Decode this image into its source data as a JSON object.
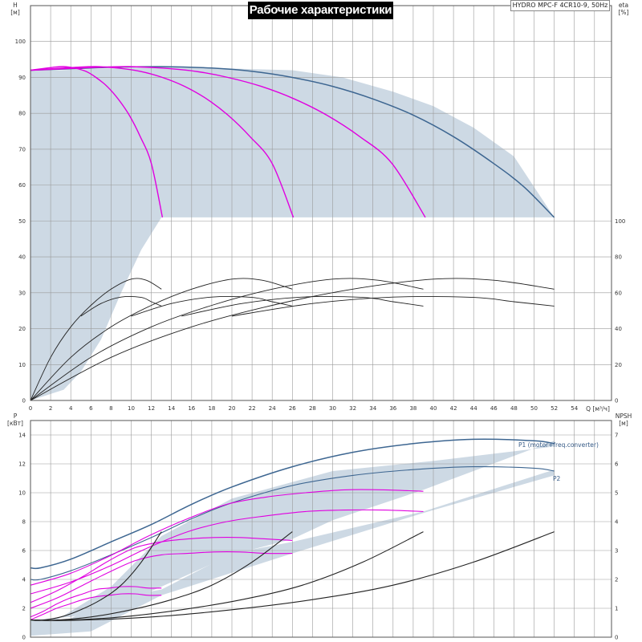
{
  "title": "Рабочие характеристики",
  "model": "HYDRO MPC-F 4CR10-9, 50Hz",
  "colors": {
    "region_fill": "#cdd9e4",
    "qh_full": "#3d6691",
    "qh_partial": "#e000e0",
    "eta": "#222222",
    "p_full": "#3d6691",
    "p_partial": "#e000e0",
    "npsh": "#222222",
    "grid": "#9a9a9a"
  },
  "chart_data": [
    {
      "id": "qh",
      "type": "line",
      "xlabel": "Q [м³/ч]",
      "ylabel_top": "H",
      "ylabel_unit": "[м]",
      "y2label_top": "eta",
      "y2label_unit": "[%]",
      "xlim": [
        0,
        56
      ],
      "ylim": [
        0,
        110
      ],
      "y2lim": [
        0,
        110
      ],
      "x_ticks": [
        0,
        2,
        4,
        6,
        8,
        10,
        12,
        14,
        16,
        18,
        20,
        22,
        24,
        26,
        28,
        30,
        32,
        34,
        36,
        38,
        40,
        42,
        44,
        46,
        48,
        50,
        52,
        54
      ],
      "y_ticks": [
        0,
        10,
        20,
        30,
        40,
        50,
        60,
        70,
        80,
        90,
        100
      ],
      "y2_ticks": [
        0,
        20,
        40,
        60,
        80,
        100
      ],
      "y2_tick_values_mapped": [
        0,
        10,
        20,
        30,
        40,
        50
      ],
      "grid": true,
      "operating_region": [
        [
          0,
          92
        ],
        [
          3,
          92
        ],
        [
          13,
          93
        ],
        [
          26,
          92
        ],
        [
          31,
          90
        ],
        [
          36,
          86
        ],
        [
          40,
          82
        ],
        [
          44,
          76
        ],
        [
          48,
          68
        ],
        [
          52,
          51
        ],
        [
          13,
          51
        ],
        [
          11,
          42
        ],
        [
          9,
          30
        ],
        [
          7,
          17
        ],
        [
          5,
          8
        ],
        [
          3.3,
          3
        ],
        [
          0,
          0
        ]
      ],
      "series": [
        {
          "group": "qh_full",
          "x": [
            0,
            4,
            8,
            13,
            18,
            22,
            26,
            30,
            34,
            38,
            42,
            46,
            49,
            52
          ],
          "y": [
            92,
            92.4,
            92.8,
            93,
            92.6,
            91.7,
            90,
            87.5,
            84,
            79.5,
            73.5,
            66,
            59.5,
            51
          ]
        },
        {
          "group": "qh_partial",
          "x": [
            0,
            3.3,
            6.5,
            9.8,
            13.1,
            16.4,
            19.6,
            22.9,
            26.2,
            29.4,
            32.7,
            35.9,
            39.2
          ],
          "y": [
            92,
            92.4,
            92.8,
            93,
            92.6,
            91.7,
            90,
            87.5,
            84,
            79.5,
            73.5,
            66,
            51
          ]
        },
        {
          "group": "qh_partial",
          "x": [
            0,
            2.2,
            4.4,
            6.5,
            8.7,
            10.9,
            13.1,
            15.3,
            17.5,
            19.6,
            21.8,
            24,
            26.1
          ],
          "y": [
            92,
            92.4,
            92.8,
            93,
            92.6,
            91.7,
            90,
            87.5,
            84,
            79.5,
            73.5,
            66,
            51
          ]
        },
        {
          "group": "qh_partial",
          "x": [
            0,
            1.1,
            2.2,
            3.3,
            4.4,
            5.5,
            6.5,
            7.6,
            8.7,
            9.8,
            10.9,
            12,
            13.1
          ],
          "y": [
            92,
            92.4,
            92.8,
            93,
            92.6,
            91.7,
            90,
            87.5,
            84,
            79.5,
            73.5,
            66,
            51
          ]
        },
        {
          "group": "eta",
          "x": [
            0,
            2,
            4,
            6,
            8,
            10,
            11.5,
            13
          ],
          "y": [
            0,
            12,
            20.5,
            26.5,
            31,
            33.8,
            33.5,
            31
          ]
        },
        {
          "group": "eta",
          "x": [
            0,
            4,
            8,
            12,
            16,
            20,
            23,
            26
          ],
          "y": [
            0,
            12,
            20.5,
            26.5,
            31,
            33.8,
            33.5,
            31
          ]
        },
        {
          "group": "eta",
          "x": [
            0,
            6,
            12,
            18,
            24,
            30,
            34.5,
            39
          ],
          "y": [
            0,
            12,
            20.5,
            26.5,
            31,
            33.8,
            33.5,
            31
          ]
        },
        {
          "group": "eta",
          "x": [
            0,
            8,
            16,
            24,
            32,
            40,
            46,
            52
          ],
          "y": [
            0,
            12,
            20.5,
            26.5,
            31,
            33.8,
            33.5,
            31
          ]
        },
        {
          "group": "eta",
          "x": [
            5,
            7,
            9,
            11,
            12,
            13
          ],
          "y": [
            23.5,
            27,
            28.8,
            28.7,
            27.5,
            26.3
          ]
        },
        {
          "group": "eta",
          "x": [
            10,
            14,
            18,
            22,
            24,
            26
          ],
          "y": [
            23.5,
            27,
            28.8,
            28.7,
            27.5,
            26.3
          ]
        },
        {
          "group": "eta",
          "x": [
            15,
            21,
            27,
            33,
            36,
            39
          ],
          "y": [
            23.5,
            27,
            28.8,
            28.7,
            27.5,
            26.3
          ]
        },
        {
          "group": "eta",
          "x": [
            20,
            28,
            36,
            44,
            48,
            52
          ],
          "y": [
            23.5,
            27,
            28.8,
            28.7,
            27.5,
            26.3
          ]
        }
      ]
    },
    {
      "id": "power",
      "type": "line",
      "ylabel_top": "P",
      "ylabel_unit": "[кВт]",
      "y2label_top": "NPSH",
      "y2label_unit": "[м]",
      "xlim": [
        0,
        56
      ],
      "ylim": [
        0,
        15
      ],
      "y2lim": [
        0,
        7.5
      ],
      "y_ticks": [
        0,
        2,
        4,
        6,
        8,
        10,
        12,
        14
      ],
      "y2_ticks": [
        0,
        1,
        2,
        3,
        4,
        5,
        6,
        7
      ],
      "grid": true,
      "p1_label": "P1 (motor+freq.converter)",
      "p2_label": "P2",
      "operating_regions": [
        [
          [
            0,
            1.2
          ],
          [
            4,
            1.4
          ],
          [
            8,
            2.0
          ],
          [
            12,
            3.2
          ],
          [
            13,
            3.5
          ],
          [
            20,
            5.7
          ],
          [
            26,
            6.8
          ],
          [
            30,
            8.1
          ],
          [
            39,
            10.2
          ],
          [
            52,
            13.6
          ],
          [
            52,
            13.2
          ],
          [
            40,
            12.2
          ],
          [
            30,
            11.5
          ],
          [
            20,
            9.6
          ],
          [
            13,
            7.0
          ],
          [
            8,
            3.5
          ],
          [
            4,
            1.8
          ],
          [
            2,
            0.9
          ],
          [
            0,
            0.3
          ]
        ],
        [
          [
            0,
            1.0
          ],
          [
            4,
            1.3
          ],
          [
            8,
            2.7
          ],
          [
            13,
            3.3
          ],
          [
            20,
            5.8
          ],
          [
            26,
            6.6
          ],
          [
            39,
            8.7
          ],
          [
            52,
            11.6
          ],
          [
            52,
            11.2
          ],
          [
            39,
            8.6
          ],
          [
            26,
            5.8
          ],
          [
            13,
            2.9
          ],
          [
            6,
            0.4
          ],
          [
            0,
            0.1
          ]
        ]
      ],
      "series": [
        {
          "group": "p_full",
          "label": "P1",
          "x": [
            0,
            1,
            4,
            8,
            12,
            16,
            20,
            26,
            32,
            38,
            44,
            50,
            52
          ],
          "y": [
            4.8,
            4.8,
            5.4,
            6.6,
            7.8,
            9.2,
            10.4,
            11.8,
            12.8,
            13.4,
            13.7,
            13.6,
            13.4
          ]
        },
        {
          "group": "p_full",
          "label": "P2",
          "x": [
            0,
            1,
            4,
            8,
            12,
            16,
            20,
            26,
            32,
            38,
            44,
            50,
            52
          ],
          "y": [
            4.0,
            4.0,
            4.6,
            5.7,
            6.9,
            8.2,
            9.3,
            10.5,
            11.2,
            11.6,
            11.8,
            11.7,
            11.5
          ]
        },
        {
          "group": "p_partial",
          "x": [
            0,
            3.9,
            7.8,
            11.7,
            15.6,
            19.5,
            23.4,
            27.3,
            31.2,
            35.1,
            39
          ],
          "y": [
            3.6,
            4.4,
            5.6,
            7.0,
            8.2,
            9.2,
            9.7,
            10.0,
            10.2,
            10.2,
            10.1
          ]
        },
        {
          "group": "p_partial",
          "x": [
            0,
            3.9,
            7.8,
            11.7,
            15.6,
            19.5,
            23.4,
            27.3,
            31.2,
            35.1,
            39
          ],
          "y": [
            3.0,
            3.8,
            4.9,
            6.2,
            7.3,
            8.0,
            8.4,
            8.7,
            8.8,
            8.8,
            8.7
          ]
        },
        {
          "group": "p_partial",
          "x": [
            0,
            2.6,
            5.2,
            7.8,
            10.4,
            13,
            15.6,
            18.2,
            20.8,
            23.4,
            26
          ],
          "y": [
            2.4,
            3.2,
            4.2,
            5.3,
            6.2,
            6.6,
            6.8,
            6.9,
            6.9,
            6.8,
            6.7
          ]
        },
        {
          "group": "p_partial",
          "x": [
            0,
            2.6,
            5.2,
            7.8,
            10.4,
            13,
            15.6,
            18.2,
            20.8,
            23.4,
            26
          ],
          "y": [
            2.0,
            2.7,
            3.6,
            4.5,
            5.3,
            5.7,
            5.8,
            5.9,
            5.9,
            5.8,
            5.8
          ]
        },
        {
          "group": "p_partial",
          "x": [
            0,
            1.3,
            2.6,
            3.9,
            5.2,
            6.5,
            7.8,
            9.1,
            10.4,
            11.7,
            13
          ],
          "y": [
            1.4,
            1.8,
            2.3,
            2.7,
            3.0,
            3.3,
            3.4,
            3.5,
            3.5,
            3.4,
            3.4
          ]
        },
        {
          "group": "p_partial",
          "x": [
            0,
            1.3,
            2.6,
            3.9,
            5.2,
            6.5,
            7.8,
            9.1,
            10.4,
            11.7,
            13
          ],
          "y": [
            1.2,
            1.6,
            2.0,
            2.3,
            2.6,
            2.8,
            2.9,
            3.0,
            3.0,
            2.9,
            2.9
          ]
        },
        {
          "group": "npsh",
          "x": [
            0,
            1,
            3,
            5,
            7,
            9,
            11,
            13
          ],
          "y": [
            0.6,
            0.58,
            0.7,
            0.95,
            1.3,
            1.8,
            2.6,
            3.65
          ]
        },
        {
          "group": "npsh",
          "x": [
            0,
            2,
            6,
            10,
            14,
            18,
            22,
            26
          ],
          "y": [
            0.6,
            0.58,
            0.7,
            0.95,
            1.3,
            1.8,
            2.6,
            3.65
          ]
        },
        {
          "group": "npsh",
          "x": [
            0,
            3,
            9,
            15,
            21,
            27,
            33,
            39
          ],
          "y": [
            0.6,
            0.58,
            0.7,
            0.95,
            1.3,
            1.8,
            2.6,
            3.65
          ]
        },
        {
          "group": "npsh",
          "x": [
            0,
            4,
            12,
            20,
            28,
            36,
            44,
            52
          ],
          "y": [
            0.6,
            0.58,
            0.7,
            0.95,
            1.3,
            1.8,
            2.6,
            3.65
          ]
        }
      ]
    }
  ]
}
